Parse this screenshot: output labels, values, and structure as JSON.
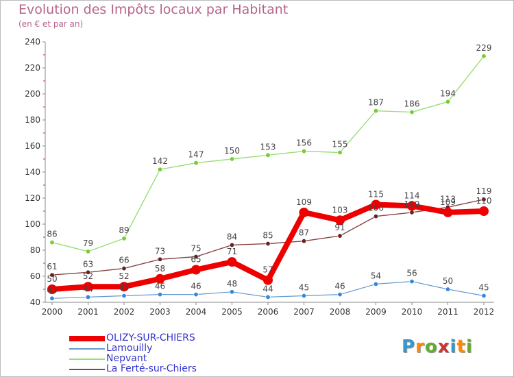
{
  "header": {
    "title": "Evolution des Impôts locaux par Habitant",
    "subtitle": "(en € et par an)"
  },
  "logo": {
    "text": "Proxiti",
    "letters": [
      "P",
      "r",
      "o",
      "x",
      "i",
      "t",
      "i"
    ],
    "letter_colors": [
      "#3399cc",
      "#ff8800",
      "#66aa33",
      "#cc3333",
      "#3399cc",
      "#ff8800",
      "#66aa33"
    ]
  },
  "colors": {
    "title": "#b5648a",
    "legend_text": "#3333cc",
    "axis": "#888888"
  },
  "chart_data": {
    "type": "line",
    "title": "Evolution des Impôts locaux par Habitant",
    "subtitle": "(en € et par an)",
    "xlabel": "",
    "ylabel": "",
    "categories": [
      "2000",
      "2001",
      "2002",
      "2003",
      "2004",
      "2005",
      "2006",
      "2007",
      "2008",
      "2009",
      "2010",
      "2011",
      "2012"
    ],
    "ylim": [
      40,
      240
    ],
    "yticks": [
      40,
      60,
      80,
      100,
      120,
      140,
      160,
      180,
      200,
      220,
      240
    ],
    "grid": false,
    "legend_position": "bottom-left",
    "series": [
      {
        "name": "OLIZY-SUR-CHIERS",
        "values": [
          50,
          52,
          52,
          58,
          65,
          71,
          57,
          109,
          103,
          115,
          114,
          109,
          110
        ],
        "labels": [
          "50",
          "52",
          "52",
          "58",
          "65",
          "71",
          "57",
          "109",
          "103",
          "115",
          "114",
          "109",
          "110"
        ],
        "color": "#ee0000",
        "marker_color": "#ee0000",
        "width": 8,
        "marker_radius": 7
      },
      {
        "name": "Lamouilly",
        "values": [
          43,
          44,
          45,
          46,
          46,
          48,
          44,
          45,
          46,
          54,
          56,
          50,
          45
        ],
        "labels": [
          "43",
          "44",
          "45",
          "46",
          "46",
          "48",
          "44",
          "45",
          "46",
          "54",
          "56",
          "50",
          "45"
        ],
        "color": "#6699cc",
        "marker_color": "#3388dd",
        "width": 1.2,
        "marker_radius": 3.2
      },
      {
        "name": "Nepvant",
        "values": [
          86,
          79,
          89,
          142,
          147,
          150,
          153,
          156,
          155,
          187,
          186,
          194,
          229
        ],
        "labels": [
          "86",
          "79",
          "89",
          "142",
          "147",
          "150",
          "153",
          "156",
          "155",
          "187",
          "186",
          "194",
          "229"
        ],
        "color": "#99dd77",
        "marker_color": "#77cc33",
        "width": 1.4,
        "marker_radius": 3.2
      },
      {
        "name": "La Ferté-sur-Chiers",
        "values": [
          61,
          63,
          66,
          73,
          75,
          84,
          85,
          87,
          91,
          106,
          109,
          113,
          119
        ],
        "labels": [
          "61",
          "63",
          "66",
          "73",
          "75",
          "84",
          "85",
          "87",
          "91",
          "106",
          "109",
          "113",
          "119"
        ],
        "color": "#884444",
        "marker_color": "#662222",
        "width": 1.4,
        "marker_radius": 3.2
      }
    ]
  }
}
